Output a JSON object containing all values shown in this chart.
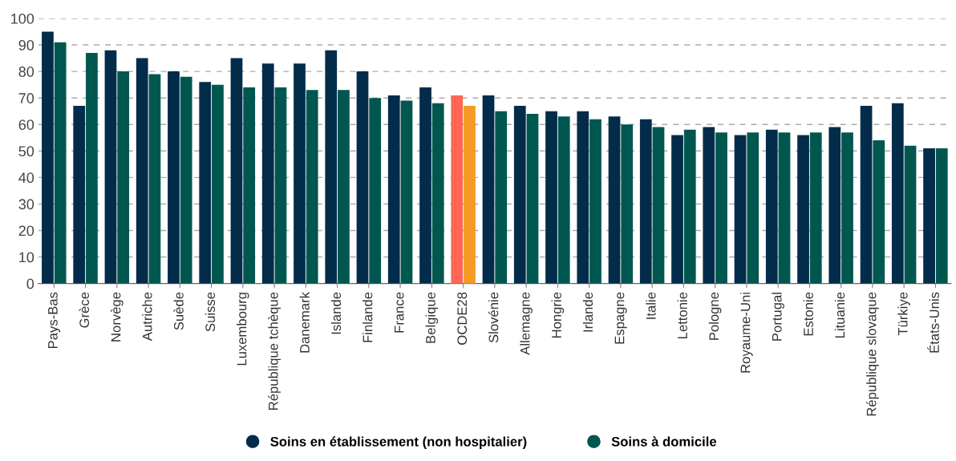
{
  "chart_data": {
    "type": "bar",
    "categories": [
      "Pays-Bas",
      "Grèce",
      "Norvège",
      "Autriche",
      "Suède",
      "Suisse",
      "Luxembourg",
      "République tchèque",
      "Danemark",
      "Islande",
      "Finlande",
      "France",
      "Belgique",
      "OCDE28",
      "Slovénie",
      "Allemagne",
      "Hongrie",
      "Irlande",
      "Espagne",
      "Italie",
      "Lettonie",
      "Pologne",
      "Royaume-Uni",
      "Portugal",
      "Estonie",
      "Lituanie",
      "République slovaque",
      "Türkiye",
      "États-Unis"
    ],
    "series": [
      {
        "name": "Soins en établissement (non hospitalier)",
        "color": "#032c4b",
        "colors": [
          "#032c4b",
          "#032c4b",
          "#032c4b",
          "#032c4b",
          "#032c4b",
          "#032c4b",
          "#032c4b",
          "#032c4b",
          "#032c4b",
          "#032c4b",
          "#032c4b",
          "#032c4b",
          "#032c4b",
          "#ff6654",
          "#032c4b",
          "#032c4b",
          "#032c4b",
          "#032c4b",
          "#032c4b",
          "#032c4b",
          "#032c4b",
          "#032c4b",
          "#032c4b",
          "#032c4b",
          "#032c4b",
          "#032c4b",
          "#032c4b",
          "#032c4b",
          "#032c4b"
        ],
        "values": [
          95,
          67,
          88,
          85,
          80,
          76,
          85,
          83,
          83,
          88,
          80,
          71,
          74,
          71,
          71,
          67,
          65,
          65,
          63,
          62,
          56,
          59,
          56,
          58,
          56,
          59,
          67,
          68,
          51
        ]
      },
      {
        "name": "Soins à domicile",
        "color": "#00574f",
        "colors": [
          "#00574f",
          "#00574f",
          "#00574f",
          "#00574f",
          "#00574f",
          "#00574f",
          "#00574f",
          "#00574f",
          "#00574f",
          "#00574f",
          "#00574f",
          "#00574f",
          "#00574f",
          "#f49a25",
          "#00574f",
          "#00574f",
          "#00574f",
          "#00574f",
          "#00574f",
          "#00574f",
          "#00574f",
          "#00574f",
          "#00574f",
          "#00574f",
          "#00574f",
          "#00574f",
          "#00574f",
          "#00574f",
          "#00574f"
        ],
        "values": [
          91,
          87,
          80,
          79,
          78,
          75,
          74,
          74,
          73,
          73,
          70,
          69,
          68,
          67,
          65,
          64,
          63,
          62,
          60,
          59,
          58,
          57,
          57,
          57,
          57,
          57,
          54,
          52,
          51
        ]
      }
    ],
    "ylim": [
      0,
      100
    ],
    "yticks": [
      0,
      10,
      20,
      30,
      40,
      50,
      60,
      70,
      80,
      90,
      100
    ],
    "grid": "y",
    "legend": "bottom"
  }
}
